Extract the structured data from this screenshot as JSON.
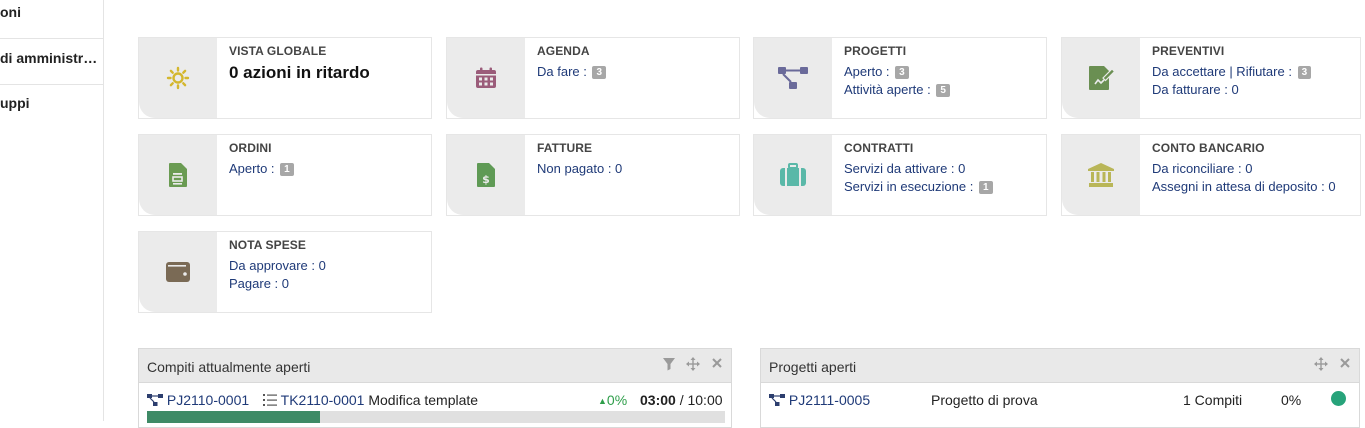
{
  "sidebar": {
    "items": [
      {
        "label": "oni"
      },
      {
        "label": "di amministrazione"
      },
      {
        "label": "uppi"
      }
    ]
  },
  "boxes": [
    {
      "id": "vista-globale",
      "title": "VISTA GLOBALE",
      "icon": "sun-icon",
      "icon_color": "#d4b72e",
      "headline": "0 azioni in ritardo",
      "lines": []
    },
    {
      "id": "agenda",
      "title": "AGENDA",
      "icon": "calendar-icon",
      "icon_color": "#9b5c7a",
      "lines": [
        {
          "text": "Da fare :",
          "badge": "3"
        }
      ]
    },
    {
      "id": "progetti",
      "title": "PROGETTI",
      "icon": "project-icon",
      "icon_color": "#6a6a9a",
      "lines": [
        {
          "text": "Aperto :",
          "badge": "3"
        },
        {
          "text": "Attività aperte :",
          "badge": "5"
        }
      ]
    },
    {
      "id": "preventivi",
      "title": "PREVENTIVI",
      "icon": "proposal-icon",
      "icon_color": "#6a8f52",
      "lines": [
        {
          "text": "Da accettare | Rifiutare :",
          "badge": "3"
        },
        {
          "text": "Da fatturare : 0",
          "badge": null
        }
      ]
    },
    {
      "id": "ordini",
      "title": "ORDINI",
      "icon": "order-icon",
      "icon_color": "#6a9b52",
      "lines": [
        {
          "text": "Aperto :",
          "badge": "1"
        }
      ]
    },
    {
      "id": "fatture",
      "title": "FATTURE",
      "icon": "invoice-icon",
      "icon_color": "#5f9a55",
      "lines": [
        {
          "text": "Non pagato : 0",
          "badge": null
        }
      ]
    },
    {
      "id": "contratti",
      "title": "CONTRATTI",
      "icon": "suitcase-icon",
      "icon_color": "#5ab8a8",
      "lines": [
        {
          "text": "Servizi da attivare : 0",
          "badge": null
        },
        {
          "text": "Servizi in esecuzione :",
          "badge": "1"
        }
      ]
    },
    {
      "id": "conto-bancario",
      "title": "CONTO BANCARIO",
      "icon": "bank-icon",
      "icon_color": "#b9b658",
      "lines": [
        {
          "text": "Da riconciliare : 0",
          "badge": null
        },
        {
          "text": "Assegni in attesa di deposito : 0",
          "badge": null
        }
      ]
    },
    {
      "id": "nota-spese",
      "title": "NOTA SPESE",
      "icon": "wallet-icon",
      "icon_color": "#7a6a55",
      "lines": [
        {
          "text": "Da approvare : 0",
          "badge": null
        },
        {
          "text": "Pagare : 0",
          "badge": null
        }
      ]
    }
  ],
  "widgets": {
    "tasks": {
      "title": "Compiti attualmente aperti",
      "row": {
        "project_ref": "PJ2110-0001",
        "task_ref": "TK2110-0001",
        "task_label": "Modifica template",
        "progress_text": "0%",
        "time_spent": "03:00",
        "time_sep": "/ 10:00",
        "progress_fraction": 0.3
      }
    },
    "projects": {
      "title": "Progetti aperti",
      "row": {
        "project_ref": "PJ2111-0005",
        "project_label": "Progetto di prova",
        "tasks_count": "1 Compiti",
        "percent": "0%",
        "status_color": "#27a37a"
      }
    }
  }
}
